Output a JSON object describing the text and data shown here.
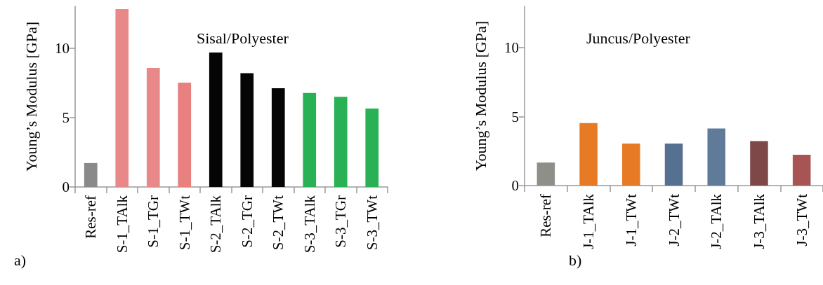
{
  "chart_data": [
    {
      "type": "bar",
      "title": "Sisal/Polyester",
      "ylabel": "Young’s Modulus [GPa]",
      "annotations": [
        "a)"
      ],
      "categories": [
        "Res-ref",
        "S-1_TAlk",
        "S-1_TGr",
        "S-1_TWt",
        "S-2_TAlk",
        "S-2_TGr",
        "S-2_TWt",
        "S-3_TAlk",
        "S-3_TGr",
        "S-3_TWt"
      ],
      "values": [
        1.72,
        12.8,
        8.56,
        7.51,
        9.68,
        8.19,
        7.1,
        6.77,
        6.49,
        5.64
      ],
      "colors": [
        "#8a8a8a",
        "#e88888",
        "#e88888",
        "#e88080",
        "#050505",
        "#050505",
        "#050505",
        "#2ab155",
        "#2ab155",
        "#2ab155"
      ],
      "ylim": [
        0,
        13
      ],
      "yticks": [
        0,
        5,
        10
      ],
      "grid": false
    },
    {
      "type": "bar",
      "title": "Juncus/Polyester",
      "ylabel": "Young’s Modulus [GPa]",
      "annotations": [
        "b)"
      ],
      "categories": [
        "Res-ref",
        "J-1_TAlk",
        "J-1_TWt",
        "J-2_TWt",
        "J-2_TAlk",
        "J-3_TAlk",
        "J-3_TWt"
      ],
      "values": [
        1.67,
        4.53,
        3.05,
        3.05,
        4.14,
        3.22,
        2.23
      ],
      "colors": [
        "#8f8f8a",
        "#e67a25",
        "#e67a25",
        "#557090",
        "#5f7b99",
        "#7f4848",
        "#a85454"
      ],
      "ylim": [
        0,
        13
      ],
      "yticks": [
        0,
        5,
        10
      ],
      "grid": false
    }
  ]
}
